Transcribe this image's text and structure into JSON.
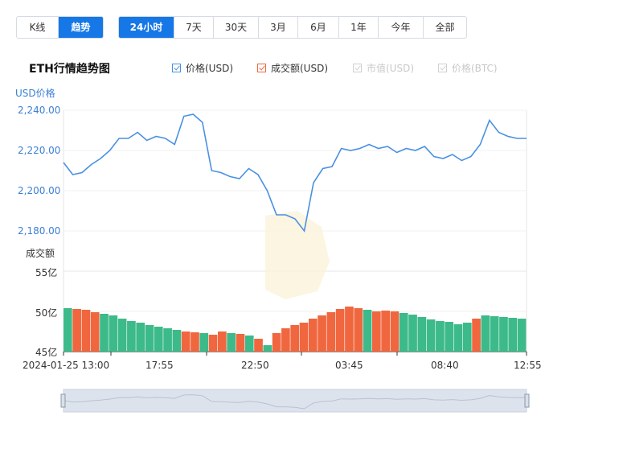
{
  "mode_tabs": [
    {
      "label": "K线",
      "active": false
    },
    {
      "label": "趋势",
      "active": true
    }
  ],
  "range_tabs": [
    {
      "label": "24小时",
      "active": true
    },
    {
      "label": "7天",
      "active": false
    },
    {
      "label": "30天",
      "active": false
    },
    {
      "label": "3月",
      "active": false
    },
    {
      "label": "6月",
      "active": false
    },
    {
      "label": "1年",
      "active": false
    },
    {
      "label": "今年",
      "active": false
    },
    {
      "label": "全部",
      "active": false
    }
  ],
  "title": "ETH行情趋势图",
  "legend": [
    {
      "label": "价格(USD)",
      "checked": true,
      "color": "#4a90e2"
    },
    {
      "label": "成交额(USD)",
      "checked": true,
      "color": "#f0673f"
    },
    {
      "label": "市值(USD)",
      "checked": false,
      "color": "#cccccc"
    },
    {
      "label": "价格(BTC)",
      "checked": false,
      "color": "#cccccc"
    }
  ],
  "colors": {
    "accent": "#1677e6",
    "price_line": "#4a90e2",
    "volume_up": "#3dba8a",
    "volume_down": "#f0673f"
  },
  "chart_data": {
    "type": "line",
    "price_axis_label": "USD价格",
    "volume_axis_label": "成交额",
    "price_ticks": [
      "2,240.00",
      "2,220.00",
      "2,200.00",
      "2,180.00"
    ],
    "volume_ticks": [
      "55亿",
      "50亿",
      "45亿"
    ],
    "x_tick_labels": [
      "2024-01-25 13:00",
      "17:55",
      "22:50",
      "03:45",
      "08:40",
      "12:55"
    ],
    "price_ylim": [
      2180,
      2240
    ],
    "volume_ylim": [
      45,
      55
    ],
    "series": [
      {
        "name": "价格(USD)",
        "x": [
          0,
          0.02,
          0.04,
          0.06,
          0.08,
          0.1,
          0.12,
          0.14,
          0.16,
          0.18,
          0.2,
          0.22,
          0.24,
          0.26,
          0.28,
          0.3,
          0.32,
          0.34,
          0.36,
          0.38,
          0.4,
          0.42,
          0.44,
          0.46,
          0.48,
          0.5,
          0.52,
          0.54,
          0.56,
          0.58,
          0.6,
          0.62,
          0.64,
          0.66,
          0.68,
          0.7,
          0.72,
          0.74,
          0.76,
          0.78,
          0.8,
          0.82,
          0.84,
          0.86,
          0.88,
          0.9,
          0.92,
          0.94,
          0.96,
          0.98,
          1.0
        ],
        "values": [
          2214,
          2208,
          2209,
          2213,
          2216,
          2220,
          2226,
          2226,
          2229,
          2225,
          2227,
          2226,
          2223,
          2237,
          2238,
          2234,
          2210,
          2209,
          2207,
          2206,
          2211,
          2208,
          2200,
          2188,
          2188,
          2186,
          2180,
          2204,
          2211,
          2212,
          2221,
          2220,
          2221,
          2223,
          2221,
          2222,
          2219,
          2221,
          2220,
          2222,
          2217,
          2216,
          2218,
          2215,
          2217,
          2223,
          2235,
          2229,
          2227,
          2226,
          2226
        ]
      },
      {
        "name": "成交额(USD)",
        "x": [
          0,
          0.02,
          0.04,
          0.06,
          0.08,
          0.1,
          0.12,
          0.14,
          0.16,
          0.18,
          0.2,
          0.22,
          0.24,
          0.26,
          0.28,
          0.3,
          0.32,
          0.34,
          0.36,
          0.38,
          0.4,
          0.42,
          0.44,
          0.46,
          0.48,
          0.5,
          0.52,
          0.54,
          0.56,
          0.58,
          0.6,
          0.62,
          0.64,
          0.66,
          0.68,
          0.7,
          0.72,
          0.74,
          0.76,
          0.78,
          0.8,
          0.82,
          0.84,
          0.86,
          0.88,
          0.9,
          0.92,
          0.94,
          0.96,
          0.98,
          1.0
        ],
        "values": [
          50.4,
          50.3,
          50.2,
          49.9,
          49.7,
          49.5,
          49.1,
          48.8,
          48.6,
          48.3,
          48.1,
          47.9,
          47.7,
          47.5,
          47.4,
          47.3,
          47.1,
          47.5,
          47.3,
          47.2,
          47.0,
          46.6,
          45.8,
          47.3,
          47.9,
          48.3,
          48.6,
          49.1,
          49.5,
          49.9,
          50.3,
          50.6,
          50.4,
          50.2,
          50.0,
          50.1,
          50.0,
          49.8,
          49.6,
          49.3,
          49.0,
          48.8,
          48.7,
          48.4,
          48.6,
          49.1,
          49.5,
          49.4,
          49.3,
          49.2,
          49.1
        ],
        "direction": [
          "up",
          "down",
          "down",
          "down",
          "up",
          "up",
          "up",
          "up",
          "up",
          "up",
          "up",
          "up",
          "up",
          "down",
          "down",
          "up",
          "down",
          "down",
          "up",
          "down",
          "up",
          "down",
          "up",
          "down",
          "down",
          "down",
          "down",
          "down",
          "down",
          "down",
          "down",
          "down",
          "down",
          "up",
          "down",
          "down",
          "down",
          "up",
          "up",
          "up",
          "up",
          "up",
          "up",
          "up",
          "up",
          "down",
          "up",
          "up",
          "up",
          "up",
          "up"
        ]
      }
    ],
    "grid": true,
    "legend_position": "top"
  }
}
